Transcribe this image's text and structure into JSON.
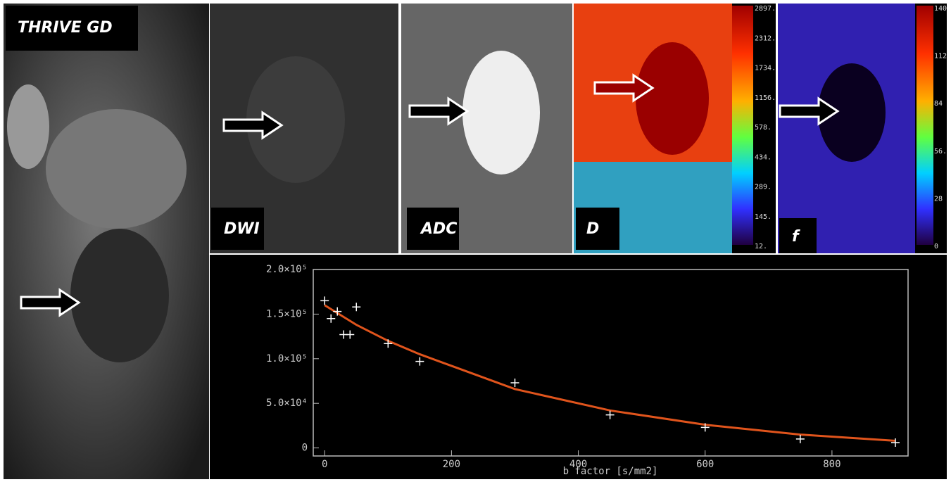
{
  "panels": [
    {
      "label": "THRIVE GD"
    },
    {
      "label": "DWI"
    },
    {
      "label": "ADC"
    },
    {
      "label": "D",
      "scale": [
        "2897.",
        "2312.",
        "1734.",
        "1156.",
        "578.",
        "434.",
        "289.",
        "145.",
        "12."
      ]
    },
    {
      "label": "f",
      "scale": [
        "140",
        "112",
        "84",
        "56.",
        "28",
        "0"
      ]
    }
  ],
  "chart_data": {
    "type": "scatter",
    "x_label": "b factor [s/mm2]",
    "x": [
      0,
      10,
      20,
      30,
      40,
      50,
      100,
      150,
      300,
      450,
      600,
      750,
      900
    ],
    "values": [
      165000,
      145000,
      153000,
      127000,
      127000,
      158000,
      117000,
      97000,
      73000,
      37000,
      23000,
      10000,
      6000
    ],
    "color": "#ffffff",
    "fit_x": [
      0,
      50,
      100,
      150,
      200,
      300,
      450,
      600,
      750,
      900
    ],
    "fit_values": [
      160000,
      138000,
      120000,
      105000,
      92000,
      66000,
      42000,
      26000,
      15000,
      8000
    ],
    "fit_color": "#e0541c",
    "xlim": [
      -18,
      920
    ],
    "xticks": [
      0,
      200,
      400,
      600,
      800
    ],
    "ylim": [
      -9000,
      200000
    ],
    "yticks": [
      0,
      {
        "value": 50000,
        "label": "5.0×10⁴"
      },
      {
        "value": 100000,
        "label": "1.0×10⁵"
      },
      {
        "value": 150000,
        "label": "1.5×10⁵"
      },
      {
        "value": 200000,
        "label": "2.0×10⁵"
      }
    ]
  }
}
